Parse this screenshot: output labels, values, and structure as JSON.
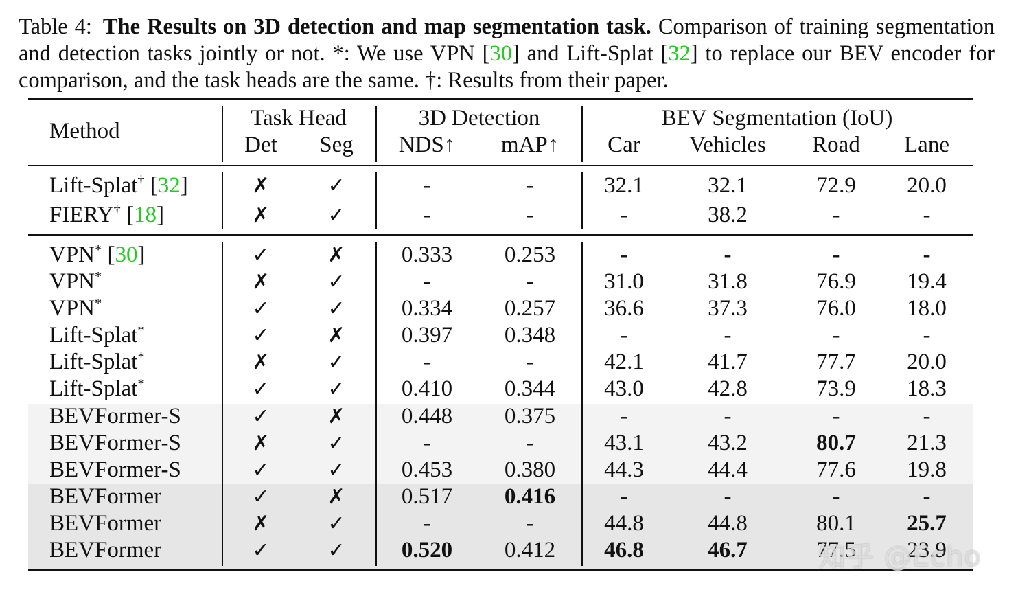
{
  "caption": {
    "label": "Table 4:",
    "title": "The Results on 3D detection and map segmentation task.",
    "body1": "Comparison of training segmentation and detection tasks jointly or not. *: We use VPN [",
    "ref1": "30",
    "body2": "] and Lift-Splat [",
    "ref2": "32",
    "body3": "] to replace our BEV encoder for comparison, and the task heads are the same. †: Results from their paper."
  },
  "header": {
    "method": "Method",
    "task_head": "Task Head",
    "det": "Det",
    "seg": "Seg",
    "detection_3d": "3D Detection",
    "nds": "NDS↑",
    "map": "mAP↑",
    "bev_seg": "BEV Segmentation (IoU)",
    "car": "Car",
    "vehicles": "Vehicles",
    "road": "Road",
    "lane": "Lane"
  },
  "rows": [
    {
      "method": "Lift-Splat",
      "sup": "†",
      "ref": "32",
      "det": "✗",
      "seg": "✓",
      "nds": "-",
      "map": "-",
      "car": "32.1",
      "vehicles": "32.1",
      "road": "72.9",
      "lane": "20.0"
    },
    {
      "method": "FIERY",
      "sup": "†",
      "ref": "18",
      "det": "✗",
      "seg": "✓",
      "nds": "-",
      "map": "-",
      "car": "-",
      "vehicles": "38.2",
      "road": "-",
      "lane": "-"
    },
    {
      "method": "VPN",
      "sup": "*",
      "ref": "30",
      "det": "✓",
      "seg": "✗",
      "nds": "0.333",
      "map": "0.253",
      "car": "-",
      "vehicles": "-",
      "road": "-",
      "lane": "-"
    },
    {
      "method": "VPN",
      "sup": "*",
      "ref": "",
      "det": "✗",
      "seg": "✓",
      "nds": "-",
      "map": "-",
      "car": "31.0",
      "vehicles": "31.8",
      "road": "76.9",
      "lane": "19.4"
    },
    {
      "method": "VPN",
      "sup": "*",
      "ref": "",
      "det": "✓",
      "seg": "✓",
      "nds": "0.334",
      "map": "0.257",
      "car": "36.6",
      "vehicles": "37.3",
      "road": "76.0",
      "lane": "18.0"
    },
    {
      "method": "Lift-Splat",
      "sup": "*",
      "ref": "",
      "det": "✓",
      "seg": "✗",
      "nds": "0.397",
      "map": "0.348",
      "car": "-",
      "vehicles": "-",
      "road": "-",
      "lane": "-"
    },
    {
      "method": "Lift-Splat",
      "sup": "*",
      "ref": "",
      "det": "✗",
      "seg": "✓",
      "nds": "-",
      "map": "-",
      "car": "42.1",
      "vehicles": "41.7",
      "road": "77.7",
      "lane": "20.0"
    },
    {
      "method": "Lift-Splat",
      "sup": "*",
      "ref": "",
      "det": "✓",
      "seg": "✓",
      "nds": "0.410",
      "map": "0.344",
      "car": "43.0",
      "vehicles": "42.8",
      "road": "73.9",
      "lane": "18.3"
    },
    {
      "method": "BEVFormer-S",
      "sup": "",
      "ref": "",
      "det": "✓",
      "seg": "✗",
      "nds": "0.448",
      "map": "0.375",
      "car": "-",
      "vehicles": "-",
      "road": "-",
      "lane": "-"
    },
    {
      "method": "BEVFormer-S",
      "sup": "",
      "ref": "",
      "det": "✗",
      "seg": "✓",
      "nds": "-",
      "map": "-",
      "car": "43.1",
      "vehicles": "43.2",
      "road": "80.7",
      "lane": "21.3"
    },
    {
      "method": "BEVFormer-S",
      "sup": "",
      "ref": "",
      "det": "✓",
      "seg": "✓",
      "nds": "0.453",
      "map": "0.380",
      "car": "44.3",
      "vehicles": "44.4",
      "road": "77.6",
      "lane": "19.8"
    },
    {
      "method": "BEVFormer",
      "sup": "",
      "ref": "",
      "det": "✓",
      "seg": "✗",
      "nds": "0.517",
      "map": "0.416",
      "car": "-",
      "vehicles": "-",
      "road": "-",
      "lane": "-"
    },
    {
      "method": "BEVFormer",
      "sup": "",
      "ref": "",
      "det": "✗",
      "seg": "✓",
      "nds": "-",
      "map": "-",
      "car": "44.8",
      "vehicles": "44.8",
      "road": "80.1",
      "lane": "25.7"
    },
    {
      "method": "BEVFormer",
      "sup": "",
      "ref": "",
      "det": "✓",
      "seg": "✓",
      "nds": "0.520",
      "map": "0.412",
      "car": "46.8",
      "vehicles": "46.7",
      "road": "77.5",
      "lane": "23.9"
    }
  ],
  "bold_cells": [
    "9.road",
    "11.map",
    "12.lane",
    "13.nds",
    "13.car",
    "13.vehicles"
  ],
  "colors": {
    "ref": "#22cc22",
    "shade_s": "#f3f3f3",
    "shade_t": "#e6e6e6"
  },
  "watermark": "知乎 @Echo"
}
